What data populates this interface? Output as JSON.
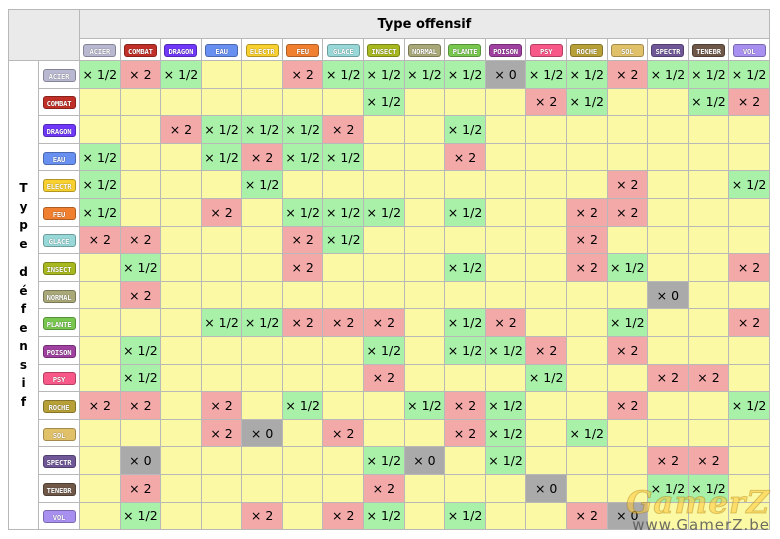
{
  "table": {
    "offensive_title": "Type offensif",
    "defensive_title": "Type défensif",
    "types": [
      {
        "label": "ACIER",
        "color": "#b8b8d0"
      },
      {
        "label": "COMBAT",
        "color": "#c03028"
      },
      {
        "label": "DRAGON",
        "color": "#7038f8"
      },
      {
        "label": "EAU",
        "color": "#6890f0"
      },
      {
        "label": "ELECTR",
        "color": "#f8d030"
      },
      {
        "label": "FEU",
        "color": "#f08030"
      },
      {
        "label": "GLACE",
        "color": "#98d8d8"
      },
      {
        "label": "INSECT",
        "color": "#a8b820"
      },
      {
        "label": "NORMAL",
        "color": "#a8a878"
      },
      {
        "label": "PLANTE",
        "color": "#78c850"
      },
      {
        "label": "POISON",
        "color": "#a040a0"
      },
      {
        "label": "PSY",
        "color": "#f85888"
      },
      {
        "label": "ROCHE",
        "color": "#b8a038"
      },
      {
        "label": "SOL",
        "color": "#e0c068"
      },
      {
        "label": "SPECTR",
        "color": "#705898"
      },
      {
        "label": "TENEBR",
        "color": "#705848"
      },
      {
        "label": "VOL",
        "color": "#a890f0"
      }
    ],
    "multiplier_labels": {
      "2": "× 2",
      "h": "× 1/2",
      "0": "× 0"
    },
    "multiplier_colors": {
      "1": "#fcf9a5",
      "2": "#f4a9a9",
      "h": "#a9f0a9",
      "0": "#aaaaaa"
    },
    "rows": [
      [
        "h",
        "2",
        "h",
        "1",
        "1",
        "2",
        "h",
        "h",
        "h",
        "h",
        "0",
        "h",
        "h",
        "2",
        "h",
        "h",
        "h"
      ],
      [
        "1",
        "1",
        "1",
        "1",
        "1",
        "1",
        "1",
        "h",
        "1",
        "1",
        "1",
        "2",
        "h",
        "1",
        "1",
        "h",
        "2"
      ],
      [
        "1",
        "1",
        "2",
        "h",
        "h",
        "h",
        "2",
        "1",
        "1",
        "h",
        "1",
        "1",
        "1",
        "1",
        "1",
        "1",
        "1"
      ],
      [
        "h",
        "1",
        "1",
        "h",
        "2",
        "h",
        "h",
        "1",
        "1",
        "2",
        "1",
        "1",
        "1",
        "1",
        "1",
        "1",
        "1"
      ],
      [
        "h",
        "1",
        "1",
        "1",
        "h",
        "1",
        "1",
        "1",
        "1",
        "1",
        "1",
        "1",
        "1",
        "2",
        "1",
        "1",
        "h"
      ],
      [
        "h",
        "1",
        "1",
        "2",
        "1",
        "h",
        "h",
        "h",
        "1",
        "h",
        "1",
        "1",
        "2",
        "2",
        "1",
        "1",
        "1"
      ],
      [
        "2",
        "2",
        "1",
        "1",
        "1",
        "2",
        "h",
        "1",
        "1",
        "1",
        "1",
        "1",
        "2",
        "1",
        "1",
        "1",
        "1"
      ],
      [
        "1",
        "h",
        "1",
        "1",
        "1",
        "2",
        "1",
        "1",
        "1",
        "h",
        "1",
        "1",
        "2",
        "h",
        "1",
        "1",
        "2"
      ],
      [
        "1",
        "2",
        "1",
        "1",
        "1",
        "1",
        "1",
        "1",
        "1",
        "1",
        "1",
        "1",
        "1",
        "1",
        "0",
        "1",
        "1"
      ],
      [
        "1",
        "1",
        "1",
        "h",
        "h",
        "2",
        "2",
        "2",
        "1",
        "h",
        "2",
        "1",
        "1",
        "h",
        "1",
        "1",
        "2"
      ],
      [
        "1",
        "h",
        "1",
        "1",
        "1",
        "1",
        "1",
        "h",
        "1",
        "h",
        "h",
        "2",
        "1",
        "2",
        "1",
        "1",
        "1"
      ],
      [
        "1",
        "h",
        "1",
        "1",
        "1",
        "1",
        "1",
        "2",
        "1",
        "1",
        "1",
        "h",
        "1",
        "1",
        "2",
        "2",
        "1"
      ],
      [
        "2",
        "2",
        "1",
        "2",
        "1",
        "h",
        "1",
        "1",
        "h",
        "2",
        "h",
        "1",
        "1",
        "2",
        "1",
        "1",
        "h"
      ],
      [
        "1",
        "1",
        "1",
        "2",
        "0",
        "1",
        "2",
        "1",
        "1",
        "2",
        "h",
        "1",
        "h",
        "1",
        "1",
        "1",
        "1"
      ],
      [
        "1",
        "0",
        "1",
        "1",
        "1",
        "1",
        "1",
        "h",
        "0",
        "1",
        "h",
        "1",
        "1",
        "1",
        "2",
        "2",
        "1"
      ],
      [
        "1",
        "2",
        "1",
        "1",
        "1",
        "1",
        "1",
        "2",
        "1",
        "1",
        "1",
        "0",
        "1",
        "1",
        "h",
        "h",
        "1"
      ],
      [
        "1",
        "h",
        "1",
        "1",
        "2",
        "1",
        "2",
        "h",
        "1",
        "h",
        "1",
        "1",
        "2",
        "0",
        "1",
        "1",
        "1"
      ]
    ]
  },
  "watermark": {
    "logo": "GamerZ",
    "url": "www.GamerZ.be"
  }
}
